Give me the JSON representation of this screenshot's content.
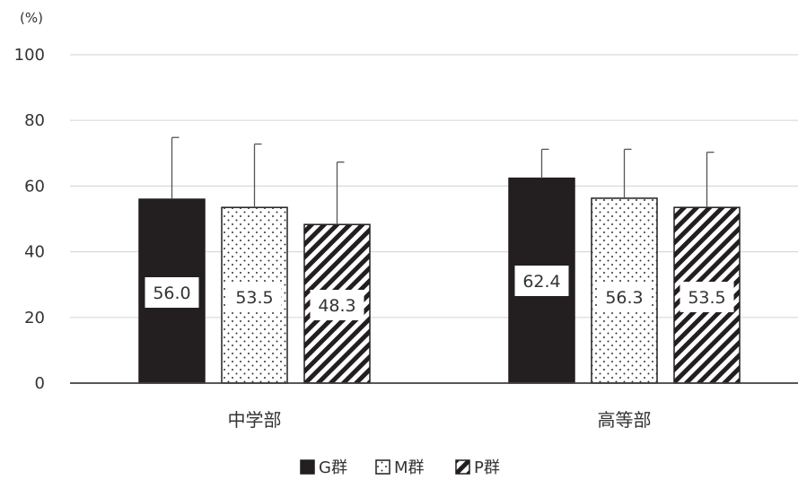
{
  "chart_data": {
    "type": "bar",
    "unit_label": "(%)",
    "categories": [
      "中学部",
      "高等部"
    ],
    "series": [
      {
        "name": "G群",
        "values": [
          56.0,
          62.4
        ],
        "value_labels": [
          "56.0",
          "62.4"
        ],
        "error_upper": [
          74.8,
          71.2
        ],
        "fill": "#231f20",
        "pattern": "solid"
      },
      {
        "name": "M群",
        "values": [
          53.5,
          56.3
        ],
        "value_labels": [
          "53.5",
          "56.3"
        ],
        "error_upper": [
          72.8,
          71.2
        ],
        "fill": "#ffffff",
        "pattern": "dots"
      },
      {
        "name": "P群",
        "values": [
          48.3,
          53.5
        ],
        "value_labels": [
          "48.3",
          "53.5"
        ],
        "error_upper": [
          67.3,
          70.3
        ],
        "fill": "#ffffff",
        "pattern": "diagonal"
      }
    ],
    "yticks": [
      "0",
      "20",
      "40",
      "60",
      "80",
      "100"
    ],
    "ylim": [
      0,
      100
    ],
    "grid": true,
    "legend_position": "bottom-center",
    "colors": {
      "bar_dark": "#231f20",
      "grid": "#d9d9d9",
      "axis": "#404040",
      "text": "#333333"
    }
  }
}
